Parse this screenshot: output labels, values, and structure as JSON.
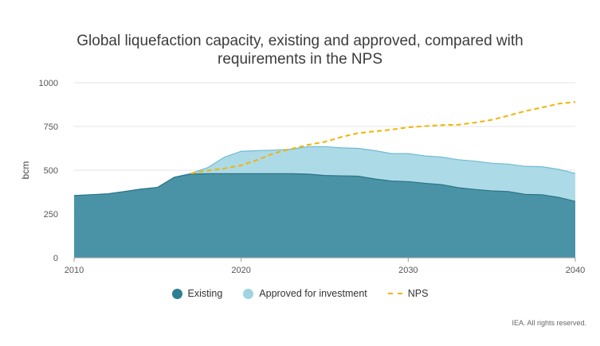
{
  "title_lines": [
    "Global liquefaction capacity, existing and approved, compared with",
    "requirements in the NPS"
  ],
  "footer": "IEA. All rights reserved.",
  "colors": {
    "existing": "#2e7f93",
    "approved": "#9fd4e3",
    "nps": "#f2b400",
    "grid": "#e3e3e3"
  },
  "chart_data": {
    "type": "area",
    "ylabel": "bcm",
    "xlim": [
      2010,
      2040
    ],
    "ylim": [
      0,
      1000
    ],
    "xticks": [
      2010,
      2020,
      2030,
      2040
    ],
    "yticks": [
      0,
      250,
      500,
      750,
      1000
    ],
    "legend_position": "bottom",
    "series": [
      {
        "name": "Existing",
        "kind": "area",
        "x": [
          2010,
          2011,
          2012,
          2013,
          2014,
          2015,
          2016,
          2017,
          2018,
          2019,
          2020,
          2021,
          2022,
          2023,
          2024,
          2025,
          2026,
          2027,
          2028,
          2029,
          2030,
          2031,
          2032,
          2033,
          2034,
          2035,
          2036,
          2037,
          2038,
          2039,
          2040
        ],
        "y": [
          355,
          360,
          365,
          378,
          392,
          402,
          460,
          478,
          480,
          480,
          480,
          480,
          480,
          480,
          478,
          470,
          468,
          466,
          450,
          438,
          435,
          425,
          418,
          400,
          390,
          382,
          378,
          362,
          360,
          345,
          322
        ]
      },
      {
        "name": "Approved for investment",
        "kind": "area",
        "x": [
          2010,
          2011,
          2012,
          2013,
          2014,
          2015,
          2016,
          2017,
          2018,
          2019,
          2020,
          2021,
          2022,
          2023,
          2024,
          2025,
          2026,
          2027,
          2028,
          2029,
          2030,
          2031,
          2032,
          2033,
          2034,
          2035,
          2036,
          2037,
          2038,
          2039,
          2040
        ],
        "y": [
          355,
          360,
          365,
          378,
          392,
          402,
          460,
          482,
          515,
          575,
          608,
          612,
          615,
          620,
          635,
          635,
          628,
          625,
          612,
          595,
          595,
          582,
          575,
          560,
          552,
          540,
          535,
          522,
          520,
          505,
          482
        ]
      },
      {
        "name": "NPS",
        "kind": "line",
        "x": [
          2017,
          2018,
          2019,
          2020,
          2021,
          2022,
          2023,
          2024,
          2025,
          2026,
          2027,
          2028,
          2029,
          2030,
          2031,
          2032,
          2033,
          2034,
          2035,
          2036,
          2037,
          2038,
          2039,
          2040
        ],
        "y": [
          482,
          498,
          510,
          528,
          560,
          598,
          622,
          645,
          662,
          690,
          712,
          722,
          732,
          745,
          752,
          758,
          760,
          772,
          788,
          812,
          838,
          858,
          880,
          890
        ]
      }
    ]
  }
}
